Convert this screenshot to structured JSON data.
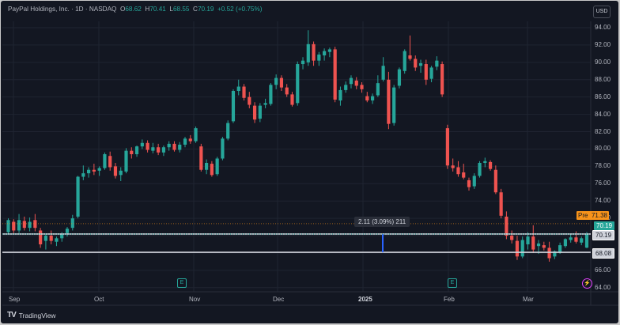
{
  "header": {
    "symbol": "PayPal Holdings, Inc. · 1D · NASDAQ",
    "o_label": "O",
    "o_value": "68.62",
    "h_label": "H",
    "h_value": "70.41",
    "l_label": "L",
    "l_value": "68.55",
    "c_label": "C",
    "c_value": "70.19",
    "change": "+0.52 (+0.75%)"
  },
  "currency_button": "USD",
  "price_tags": {
    "pre_label": "Pre",
    "pre_value": "71.38",
    "last": "70.19",
    "line_upper": "70.19",
    "line_lower": "68.08"
  },
  "measure_label": "2.11 (3.09%) 211",
  "earnings_label": "E",
  "footer": {
    "brand": "TradingView",
    "logo": "TV"
  },
  "colors": {
    "up": "#26a69a",
    "down": "#ef5350",
    "background": "#131722",
    "grid": "#1f2431",
    "pre": "#f7931a",
    "hline": "#d1d4dc",
    "measure": "#2962ff"
  },
  "chart_data": {
    "type": "candlestick",
    "title": "PayPal Holdings, Inc. · 1D · NASDAQ",
    "x_tick_labels": [
      "Sep",
      "Oct",
      "Nov",
      "Dec",
      "2025",
      "Feb",
      "Mar"
    ],
    "y_tick_labels": [
      "94.00",
      "92.00",
      "90.00",
      "88.00",
      "86.00",
      "84.00",
      "82.00",
      "80.00",
      "78.00",
      "76.00",
      "74.00",
      "72.00",
      "70.00",
      "68.00",
      "66.00",
      "64.00"
    ],
    "ylim": [
      63.3,
      95.3
    ],
    "grid": true,
    "horizontal_lines": [
      70.19,
      68.08
    ],
    "ohlc": [
      [
        70.4,
        72.0,
        70.2,
        71.8
      ],
      [
        71.6,
        71.9,
        70.3,
        70.6
      ],
      [
        70.6,
        72.5,
        70.3,
        71.8
      ],
      [
        71.7,
        72.2,
        70.6,
        70.9
      ],
      [
        70.9,
        72.1,
        70.5,
        71.6
      ],
      [
        71.8,
        72.5,
        70.5,
        70.9
      ],
      [
        70.6,
        70.9,
        68.6,
        69.0
      ],
      [
        69.4,
        70.2,
        68.4,
        70.0
      ],
      [
        70.0,
        70.6,
        69.0,
        69.4
      ],
      [
        69.3,
        69.9,
        68.8,
        69.7
      ],
      [
        69.7,
        70.4,
        69.3,
        70.2
      ],
      [
        70.3,
        71.0,
        69.9,
        70.8
      ],
      [
        70.9,
        72.4,
        70.6,
        72.0
      ],
      [
        72.2,
        76.9,
        72.0,
        76.8
      ],
      [
        76.8,
        78.1,
        76.4,
        77.2
      ],
      [
        77.2,
        77.9,
        76.7,
        77.6
      ],
      [
        77.6,
        78.3,
        77.0,
        77.4
      ],
      [
        77.5,
        78.0,
        76.9,
        77.8
      ],
      [
        77.8,
        79.6,
        77.6,
        79.4
      ],
      [
        79.2,
        79.7,
        77.5,
        77.9
      ],
      [
        78.0,
        78.4,
        76.6,
        76.9
      ],
      [
        77.0,
        77.9,
        76.3,
        77.5
      ],
      [
        77.4,
        80.1,
        77.2,
        79.8
      ],
      [
        79.8,
        80.2,
        78.9,
        79.4
      ],
      [
        79.4,
        80.4,
        79.1,
        80.3
      ],
      [
        80.3,
        81.1,
        80.0,
        80.7
      ],
      [
        80.7,
        81.0,
        79.6,
        79.9
      ],
      [
        79.8,
        80.7,
        79.5,
        80.2
      ],
      [
        80.2,
        80.6,
        79.3,
        79.6
      ],
      [
        79.6,
        80.4,
        79.2,
        80.2
      ],
      [
        80.2,
        80.9,
        79.8,
        80.6
      ],
      [
        80.6,
        80.9,
        79.7,
        79.9
      ],
      [
        79.9,
        80.8,
        79.6,
        80.5
      ],
      [
        80.5,
        81.4,
        80.2,
        81.2
      ],
      [
        81.2,
        81.6,
        80.6,
        80.9
      ],
      [
        80.9,
        82.6,
        80.7,
        82.4
      ],
      [
        80.3,
        80.6,
        77.4,
        77.6
      ],
      [
        77.6,
        78.8,
        77.1,
        78.4
      ],
      [
        78.3,
        78.6,
        76.8,
        77.0
      ],
      [
        77.1,
        79.1,
        76.9,
        78.9
      ],
      [
        78.9,
        81.4,
        78.7,
        81.2
      ],
      [
        81.2,
        83.3,
        81.0,
        83.0
      ],
      [
        83.2,
        86.9,
        83.0,
        86.7
      ],
      [
        86.7,
        88.0,
        86.2,
        87.2
      ],
      [
        87.2,
        87.5,
        85.6,
        85.9
      ],
      [
        86.0,
        86.6,
        84.7,
        85.1
      ],
      [
        85.0,
        85.4,
        83.0,
        83.4
      ],
      [
        83.5,
        85.3,
        83.1,
        85.0
      ],
      [
        85.1,
        85.8,
        84.7,
        85.3
      ],
      [
        85.2,
        87.6,
        85.0,
        87.4
      ],
      [
        87.4,
        88.6,
        86.9,
        88.2
      ],
      [
        88.2,
        88.5,
        86.7,
        87.1
      ],
      [
        87.1,
        87.5,
        86.0,
        86.3
      ],
      [
        86.3,
        86.6,
        84.9,
        85.1
      ],
      [
        85.3,
        90.1,
        85.0,
        89.8
      ],
      [
        89.8,
        90.6,
        89.2,
        90.2
      ],
      [
        90.0,
        93.7,
        89.6,
        92.1
      ],
      [
        92.1,
        92.4,
        89.6,
        90.2
      ],
      [
        90.2,
        91.2,
        89.6,
        90.9
      ],
      [
        90.8,
        91.6,
        90.2,
        91.3
      ],
      [
        91.2,
        91.7,
        90.6,
        91.5
      ],
      [
        91.5,
        91.8,
        85.4,
        85.7
      ],
      [
        85.6,
        87.2,
        85.0,
        86.8
      ],
      [
        86.8,
        87.8,
        86.5,
        87.4
      ],
      [
        87.5,
        88.5,
        87.0,
        88.2
      ],
      [
        87.9,
        88.3,
        86.9,
        87.3
      ],
      [
        87.4,
        87.7,
        86.5,
        86.9
      ],
      [
        86.1,
        86.6,
        85.4,
        85.6
      ],
      [
        85.6,
        86.4,
        85.2,
        86.1
      ],
      [
        86.2,
        88.5,
        86.0,
        87.6
      ],
      [
        88.0,
        90.6,
        87.8,
        89.6
      ],
      [
        88.0,
        88.9,
        82.3,
        82.9
      ],
      [
        83.0,
        87.4,
        82.7,
        87.1
      ],
      [
        87.3,
        89.4,
        87.0,
        89.2
      ],
      [
        89.0,
        91.5,
        88.7,
        91.3
      ],
      [
        90.8,
        93.1,
        90.2,
        90.4
      ],
      [
        90.4,
        90.8,
        89.0,
        89.4
      ],
      [
        89.6,
        90.3,
        88.8,
        89.9
      ],
      [
        89.8,
        90.3,
        87.4,
        88.0
      ],
      [
        88.1,
        89.6,
        87.7,
        89.4
      ],
      [
        89.5,
        90.7,
        89.1,
        90.2
      ],
      [
        89.8,
        90.1,
        86.0,
        86.3
      ],
      [
        82.4,
        82.8,
        77.7,
        78.1
      ],
      [
        78.1,
        78.9,
        77.4,
        77.8
      ],
      [
        77.9,
        78.6,
        76.8,
        77.1
      ],
      [
        77.3,
        78.3,
        76.5,
        76.7
      ],
      [
        76.4,
        76.7,
        75.2,
        75.6
      ],
      [
        75.7,
        77.2,
        75.4,
        76.9
      ],
      [
        76.9,
        78.6,
        76.7,
        78.4
      ],
      [
        78.4,
        79.0,
        77.9,
        78.6
      ],
      [
        78.5,
        78.7,
        77.5,
        77.7
      ],
      [
        77.6,
        78.1,
        74.8,
        75.0
      ],
      [
        75.0,
        75.4,
        72.0,
        72.3
      ],
      [
        72.2,
        72.8,
        69.6,
        70.0
      ],
      [
        70.0,
        70.6,
        69.1,
        69.5
      ],
      [
        69.4,
        70.0,
        67.2,
        67.6
      ],
      [
        67.6,
        69.9,
        67.4,
        69.5
      ],
      [
        69.0,
        70.4,
        68.4,
        69.9
      ],
      [
        69.9,
        71.2,
        68.0,
        68.4
      ],
      [
        68.8,
        69.5,
        67.9,
        69.1
      ],
      [
        68.9,
        69.3,
        68.3,
        68.6
      ],
      [
        68.6,
        69.3,
        67.0,
        67.4
      ],
      [
        67.6,
        68.3,
        67.3,
        68.2
      ],
      [
        68.1,
        69.2,
        67.9,
        68.9
      ],
      [
        68.8,
        69.7,
        68.6,
        69.6
      ],
      [
        69.5,
        70.2,
        69.2,
        69.8
      ],
      [
        69.8,
        70.5,
        69.1,
        69.3
      ],
      [
        69.2,
        69.9,
        68.9,
        69.7
      ],
      [
        68.62,
        70.41,
        68.55,
        70.19
      ]
    ]
  }
}
